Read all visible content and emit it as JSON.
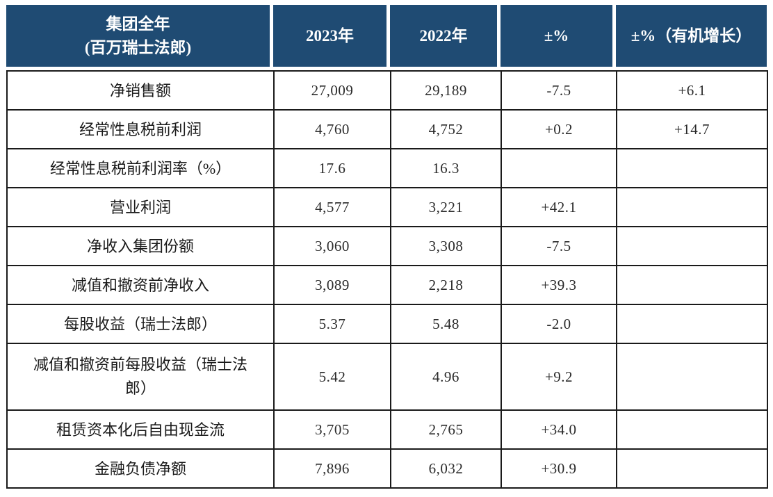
{
  "table": {
    "header": {
      "col1_line1": "集团全年",
      "col1_line2": "(百万瑞士法郎)",
      "col2": "2023年",
      "col3": "2022年",
      "col4": "±%",
      "col5": "±%（有机增长）"
    },
    "rows": [
      {
        "label": "净销售额",
        "y2023": "27,009",
        "y2022": "29,189",
        "chg": "-7.5",
        "organic": "+6.1",
        "tall": false
      },
      {
        "label": "经常性息税前利润",
        "y2023": "4,760",
        "y2022": "4,752",
        "chg": "+0.2",
        "organic": "+14.7",
        "tall": false
      },
      {
        "label": "经常性息税前利润率（%）",
        "y2023": "17.6",
        "y2022": "16.3",
        "chg": "",
        "organic": "",
        "tall": false
      },
      {
        "label": "营业利润",
        "y2023": "4,577",
        "y2022": "3,221",
        "chg": "+42.1",
        "organic": "",
        "tall": false
      },
      {
        "label": "净收入集团份额",
        "y2023": "3,060",
        "y2022": "3,308",
        "chg": "-7.5",
        "organic": "",
        "tall": false
      },
      {
        "label": "减值和撤资前净收入",
        "y2023": "3,089",
        "y2022": "2,218",
        "chg": "+39.3",
        "organic": "",
        "tall": false
      },
      {
        "label": "每股收益（瑞士法郎）",
        "y2023": "5.37",
        "y2022": "5.48",
        "chg": "-2.0",
        "organic": "",
        "tall": false
      },
      {
        "label": "减值和撤资前每股收益（瑞士法郎）",
        "y2023": "5.42",
        "y2022": "4.96",
        "chg": "+9.2",
        "organic": "",
        "tall": true
      },
      {
        "label": "租赁资本化后自由现金流",
        "y2023": "3,705",
        "y2022": "2,765",
        "chg": "+34.0",
        "organic": "",
        "tall": false
      },
      {
        "label": "金融负债净额",
        "y2023": "7,896",
        "y2022": "6,032",
        "chg": "+30.9",
        "organic": "",
        "tall": false
      }
    ]
  }
}
